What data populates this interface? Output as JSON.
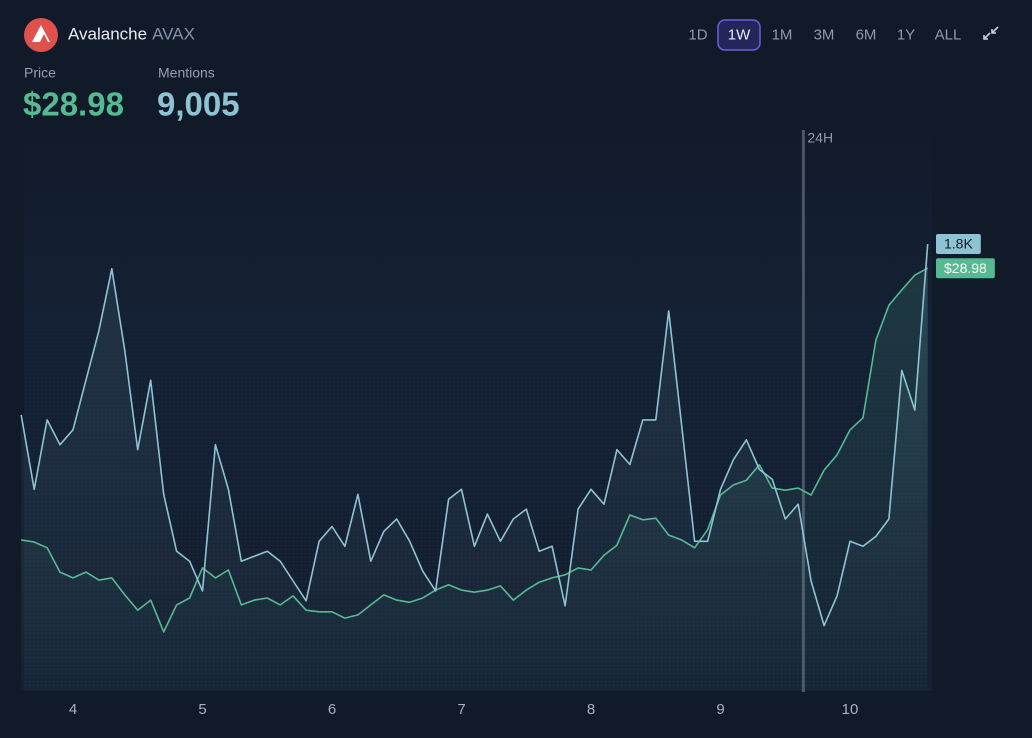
{
  "chart_data": {
    "type": "line",
    "title": "Avalanche",
    "symbol": "AVAX",
    "ranges": [
      "1D",
      "1W",
      "1M",
      "3M",
      "6M",
      "1Y",
      "ALL"
    ],
    "active_range": "1W",
    "x": [
      3.6,
      3.7,
      3.8,
      3.9,
      4.0,
      4.1,
      4.2,
      4.3,
      4.4,
      4.5,
      4.6,
      4.7,
      4.8,
      4.9,
      5.0,
      5.1,
      5.2,
      5.3,
      5.4,
      5.5,
      5.6,
      5.7,
      5.8,
      5.9,
      6.0,
      6.1,
      6.2,
      6.3,
      6.4,
      6.5,
      6.6,
      6.7,
      6.8,
      6.9,
      7.0,
      7.1,
      7.2,
      7.3,
      7.4,
      7.5,
      7.6,
      7.7,
      7.8,
      7.9,
      8.0,
      8.1,
      8.2,
      8.3,
      8.4,
      8.5,
      8.6,
      8.7,
      8.8,
      8.9,
      9.0,
      9.1,
      9.2,
      9.3,
      9.4,
      9.5,
      9.6,
      9.7,
      9.8,
      9.9,
      10.0,
      10.1,
      10.2,
      10.3,
      10.4,
      10.5,
      10.6
    ],
    "xlim": [
      3.6,
      10.6
    ],
    "xticks": [
      4,
      5,
      6,
      7,
      8,
      9,
      10
    ],
    "ylim": [
      21,
      31.5
    ],
    "y2lim": [
      0,
      2240
    ],
    "annotations": [
      {
        "text": "24H",
        "x": 9.64
      }
    ],
    "series": [
      {
        "name": "Price",
        "color": "#55b991",
        "axis": "y",
        "headline": "$28.98",
        "end_label": "$28.98",
        "values": [
          23.84,
          23.8,
          23.69,
          23.23,
          23.12,
          23.23,
          23.08,
          23.12,
          22.8,
          22.51,
          22.7,
          22.1,
          22.61,
          22.74,
          23.31,
          23.12,
          23.27,
          22.61,
          22.7,
          22.74,
          22.61,
          22.78,
          22.51,
          22.48,
          22.48,
          22.36,
          22.42,
          22.61,
          22.8,
          22.7,
          22.66,
          22.74,
          22.89,
          22.99,
          22.89,
          22.85,
          22.89,
          22.97,
          22.7,
          22.89,
          23.04,
          23.12,
          23.18,
          23.31,
          23.27,
          23.55,
          23.74,
          24.31,
          24.22,
          24.25,
          23.93,
          23.84,
          23.69,
          24.03,
          24.69,
          24.88,
          24.97,
          25.26,
          24.82,
          24.78,
          24.82,
          24.69,
          25.16,
          25.45,
          25.92,
          26.15,
          27.62,
          28.28,
          28.57,
          28.85,
          28.98
        ]
      },
      {
        "name": "Mentions",
        "color": "#8ec3d3",
        "axis": "y2",
        "headline": "9,005",
        "end_label": "1.8K",
        "values": [
          1110,
          810,
          1090,
          990,
          1050,
          1250,
          1450,
          1700,
          1370,
          970,
          1250,
          790,
          560,
          520,
          400,
          990,
          810,
          520,
          540,
          560,
          520,
          440,
          360,
          600,
          660,
          580,
          790,
          520,
          640,
          690,
          600,
          480,
          400,
          770,
          810,
          580,
          710,
          600,
          690,
          730,
          560,
          580,
          340,
          730,
          810,
          750,
          970,
          910,
          1090,
          1090,
          1530,
          1070,
          600,
          600,
          810,
          930,
          1010,
          890,
          850,
          690,
          750,
          440,
          260,
          380,
          600,
          580,
          620,
          690,
          1290,
          1130,
          1800
        ]
      }
    ]
  }
}
